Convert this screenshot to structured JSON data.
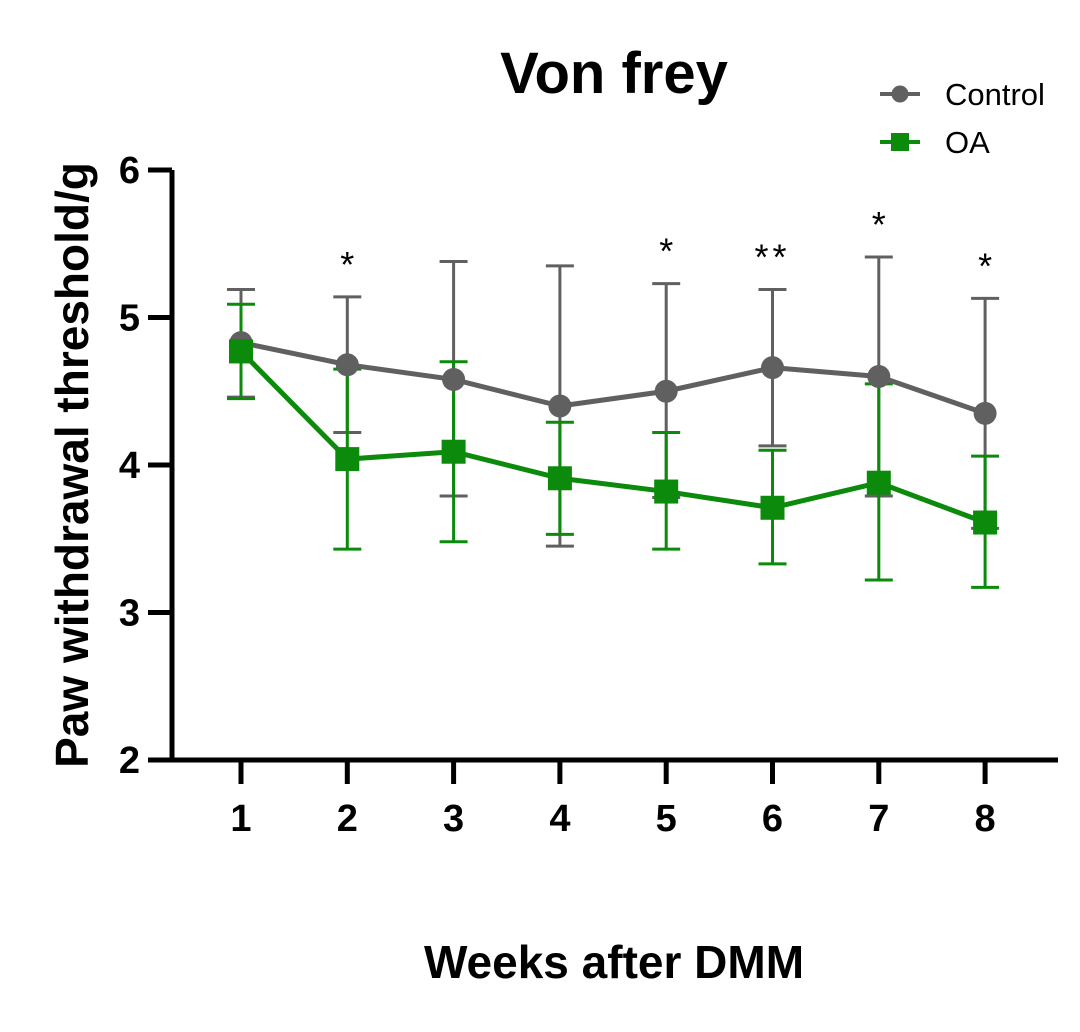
{
  "chart_data": {
    "type": "line",
    "title": "Von frey",
    "xlabel": "Weeks after DMM",
    "ylabel": "Paw withdrawal threshold/g",
    "x": [
      1,
      2,
      3,
      4,
      5,
      6,
      7,
      8
    ],
    "x_tick_labels": [
      "1",
      "2",
      "3",
      "4",
      "5",
      "6",
      "7",
      "8"
    ],
    "ylim": [
      2,
      6
    ],
    "y_ticks": [
      2,
      3,
      4,
      5,
      6
    ],
    "y_tick_labels": [
      "2",
      "3",
      "4",
      "5",
      "6"
    ],
    "grid": false,
    "legend_position": "top-right",
    "series": [
      {
        "name": "Control",
        "marker": "circle",
        "color": "#606060",
        "values": [
          4.83,
          4.68,
          4.58,
          4.4,
          4.5,
          4.66,
          4.6,
          4.35
        ],
        "error_upper": [
          5.19,
          5.14,
          5.38,
          5.35,
          5.23,
          5.19,
          5.41,
          5.13
        ],
        "error_lower": [
          4.46,
          4.22,
          3.79,
          3.45,
          3.78,
          4.13,
          3.79,
          3.57
        ]
      },
      {
        "name": "OA",
        "marker": "square",
        "color": "#0b8a0b",
        "values": [
          4.77,
          4.04,
          4.09,
          3.91,
          3.82,
          3.71,
          3.88,
          3.61
        ],
        "error_upper": [
          5.09,
          4.65,
          4.7,
          4.29,
          4.22,
          4.1,
          4.55,
          4.06
        ],
        "error_lower": [
          4.45,
          3.43,
          3.48,
          3.53,
          3.43,
          3.33,
          3.22,
          3.17
        ]
      }
    ],
    "annotations": [
      {
        "x": 2,
        "text": "*"
      },
      {
        "x": 5,
        "text": "*"
      },
      {
        "x": 6,
        "text": "**"
      },
      {
        "x": 7,
        "text": "*"
      },
      {
        "x": 8,
        "text": "*"
      }
    ]
  }
}
